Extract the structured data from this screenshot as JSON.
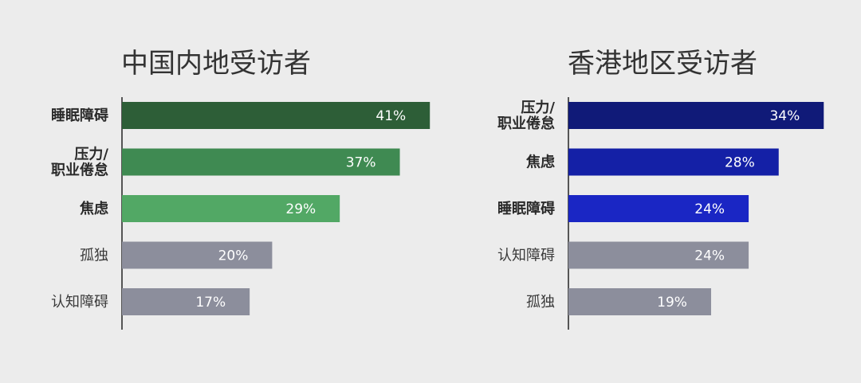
{
  "chart_data": [
    {
      "type": "bar",
      "orientation": "horizontal",
      "title": "中国内地受访者",
      "categories": [
        [
          "睡眠障碍"
        ],
        [
          "压力/",
          "职业倦怠"
        ],
        [
          "焦虑"
        ],
        [
          "孤独"
        ],
        [
          "认知障碍"
        ]
      ],
      "values": [
        41,
        37,
        29,
        20,
        17
      ],
      "value_labels": [
        "41%",
        "37%",
        "29%",
        "20%",
        "17%"
      ],
      "bold": [
        true,
        true,
        true,
        false,
        false
      ],
      "colors": [
        "#2d5e37",
        "#3f8a52",
        "#52a865",
        "#8c8e9c",
        "#8c8e9c"
      ],
      "xlim": [
        0,
        45
      ],
      "xlabel": "",
      "ylabel": ""
    },
    {
      "type": "bar",
      "orientation": "horizontal",
      "title": "香港地区受访者",
      "categories": [
        [
          "压力/",
          "职业倦怠"
        ],
        [
          "焦虑"
        ],
        [
          "睡眠障碍"
        ],
        [
          "认知障碍"
        ],
        [
          "孤独"
        ]
      ],
      "values": [
        34,
        28,
        24,
        24,
        19
      ],
      "value_labels": [
        "34%",
        "28%",
        "24%",
        "24%",
        "19%"
      ],
      "bold": [
        true,
        true,
        true,
        false,
        false
      ],
      "colors": [
        "#101a78",
        "#1420a6",
        "#1a26c4",
        "#8c8e9c",
        "#8c8e9c"
      ],
      "xlim": [
        0,
        45
      ],
      "xlabel": "",
      "ylabel": ""
    }
  ]
}
